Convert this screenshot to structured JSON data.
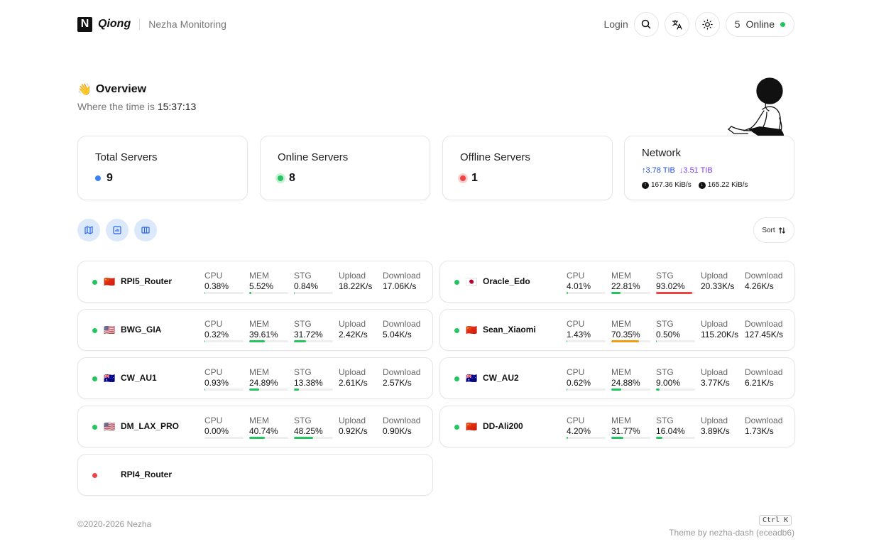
{
  "header": {
    "brand_letter": "N",
    "brand_name": "Qiong",
    "brand_sub": "Nezha Monitoring",
    "login_label": "Login",
    "online_count": "5",
    "online_label": "Online"
  },
  "overview": {
    "emoji": "👋",
    "title": "Overview",
    "time_prefix": "Where the time is",
    "time": "15:37:13"
  },
  "stats": {
    "total": {
      "label": "Total Servers",
      "value": "9"
    },
    "online": {
      "label": "Online Servers",
      "value": "8"
    },
    "offline": {
      "label": "Offline Servers",
      "value": "1"
    },
    "network": {
      "label": "Network",
      "upload_total": "↑3.78 TIB",
      "download_total": "↓3.51 TIB",
      "upload_speed": "167.36 KiB/s",
      "download_speed": "165.22 KiB/s"
    }
  },
  "controls": {
    "sort_label": "Sort"
  },
  "labels": {
    "cpu": "CPU",
    "mem": "MEM",
    "stg": "STG",
    "upload": "Upload",
    "download": "Download"
  },
  "servers": [
    {
      "name": "RPI5_Router",
      "flag": "🇨🇳",
      "online": true,
      "cpu": "0.38%",
      "mem": "5.52%",
      "stg": "0.84%",
      "upload": "18.22K/s",
      "download": "17.06K/s",
      "cpu_pct": 0.38,
      "mem_pct": 5.52,
      "stg_pct": 0.84
    },
    {
      "name": "Oracle_Edo",
      "flag": "🇯🇵",
      "online": true,
      "cpu": "4.01%",
      "mem": "22.81%",
      "stg": "93.02%",
      "upload": "20.33K/s",
      "download": "4.26K/s",
      "cpu_pct": 4.01,
      "mem_pct": 22.81,
      "stg_pct": 93.02
    },
    {
      "name": "BWG_GIA",
      "flag": "🇺🇸",
      "online": true,
      "cpu": "0.32%",
      "mem": "39.61%",
      "stg": "31.72%",
      "upload": "2.42K/s",
      "download": "5.04K/s",
      "cpu_pct": 0.32,
      "mem_pct": 39.61,
      "stg_pct": 31.72
    },
    {
      "name": "Sean_Xiaomi",
      "flag": "🇨🇳",
      "online": true,
      "cpu": "1.43%",
      "mem": "70.35%",
      "stg": "0.50%",
      "upload": "115.20K/s",
      "download": "127.45K/s",
      "cpu_pct": 1.43,
      "mem_pct": 70.35,
      "stg_pct": 0.5
    },
    {
      "name": "CW_AU1",
      "flag": "🇦🇺",
      "online": true,
      "cpu": "0.93%",
      "mem": "24.89%",
      "stg": "13.38%",
      "upload": "2.61K/s",
      "download": "2.57K/s",
      "cpu_pct": 0.93,
      "mem_pct": 24.89,
      "stg_pct": 13.38
    },
    {
      "name": "CW_AU2",
      "flag": "🇦🇺",
      "online": true,
      "cpu": "0.62%",
      "mem": "24.88%",
      "stg": "9.00%",
      "upload": "3.77K/s",
      "download": "6.21K/s",
      "cpu_pct": 0.62,
      "mem_pct": 24.88,
      "stg_pct": 9.0
    },
    {
      "name": "DM_LAX_PRO",
      "flag": "🇺🇸",
      "online": true,
      "cpu": "0.00%",
      "mem": "40.74%",
      "stg": "48.25%",
      "upload": "0.92K/s",
      "download": "0.90K/s",
      "cpu_pct": 0.0,
      "mem_pct": 40.74,
      "stg_pct": 48.25
    },
    {
      "name": "DD-Ali200",
      "flag": "🇨🇳",
      "online": true,
      "cpu": "4.20%",
      "mem": "31.77%",
      "stg": "16.04%",
      "upload": "3.89K/s",
      "download": "1.73K/s",
      "cpu_pct": 4.2,
      "mem_pct": 31.77,
      "stg_pct": 16.04
    },
    {
      "name": "RPI4_Router",
      "flag": "",
      "online": false
    }
  ],
  "footer": {
    "copyright": "©2020-2026 Nezha",
    "shortcut": "Ctrl K",
    "theme": "Theme by nezha-dash (eceadb6)"
  },
  "colors": {
    "online": "#22c55e",
    "offline": "#ef4444",
    "total": "#3b82f6",
    "upload": "#1d4ed8",
    "download": "#7c3aed",
    "view_button_bg": "#dbe9fb"
  }
}
